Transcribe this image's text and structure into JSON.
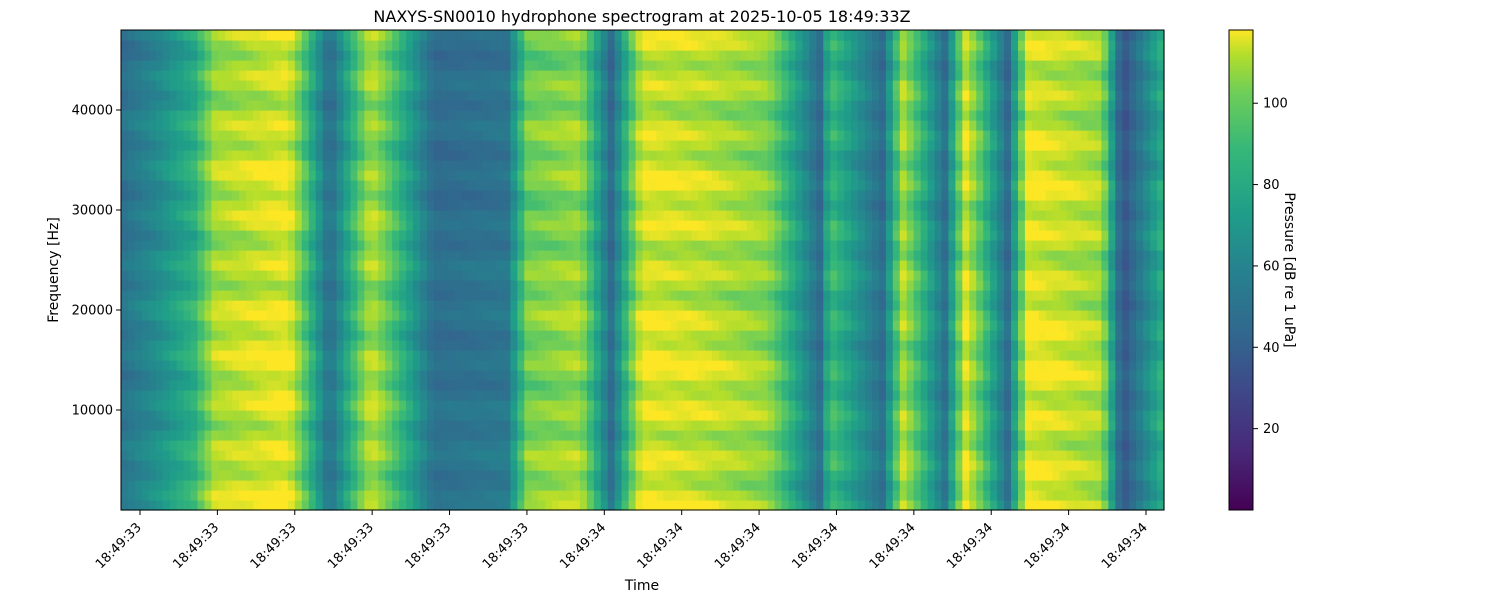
{
  "chart_data": {
    "type": "heatmap",
    "title": "NAXYS-SN0010 hydrophone spectrogram at 2025-10-05 18:49:33Z",
    "xlabel": "Time",
    "ylabel": "Frequency [Hz]",
    "colorbar_label": "Pressure [dB re 1 uPa]",
    "colormap": "viridis",
    "ylim": [
      0,
      48000
    ],
    "y_ticks": [
      10000,
      20000,
      30000,
      40000
    ],
    "x_tick_labels": [
      "18:49:33",
      "18:49:33",
      "18:49:33",
      "18:49:33",
      "18:49:33",
      "18:49:33",
      "18:49:34",
      "18:49:34",
      "18:49:34",
      "18:49:34",
      "18:49:34",
      "18:49:34",
      "18:49:34",
      "18:49:34"
    ],
    "clim": [
      0,
      118
    ],
    "colorbar_ticks": [
      20,
      40,
      60,
      80,
      100
    ],
    "band_levels_db": [
      42,
      55,
      72,
      100,
      112,
      40,
      103,
      40,
      44,
      90,
      98,
      40,
      110,
      105,
      95,
      40,
      78,
      40,
      100,
      42,
      108,
      40,
      112,
      100,
      28,
      72
    ],
    "band_times": [
      0.0,
      0.035,
      0.07,
      0.09,
      0.16,
      0.2,
      0.24,
      0.3,
      0.37,
      0.39,
      0.44,
      0.47,
      0.5,
      0.56,
      0.62,
      0.67,
      0.68,
      0.73,
      0.75,
      0.79,
      0.81,
      0.85,
      0.87,
      0.94,
      0.96,
      1.0
    ]
  }
}
